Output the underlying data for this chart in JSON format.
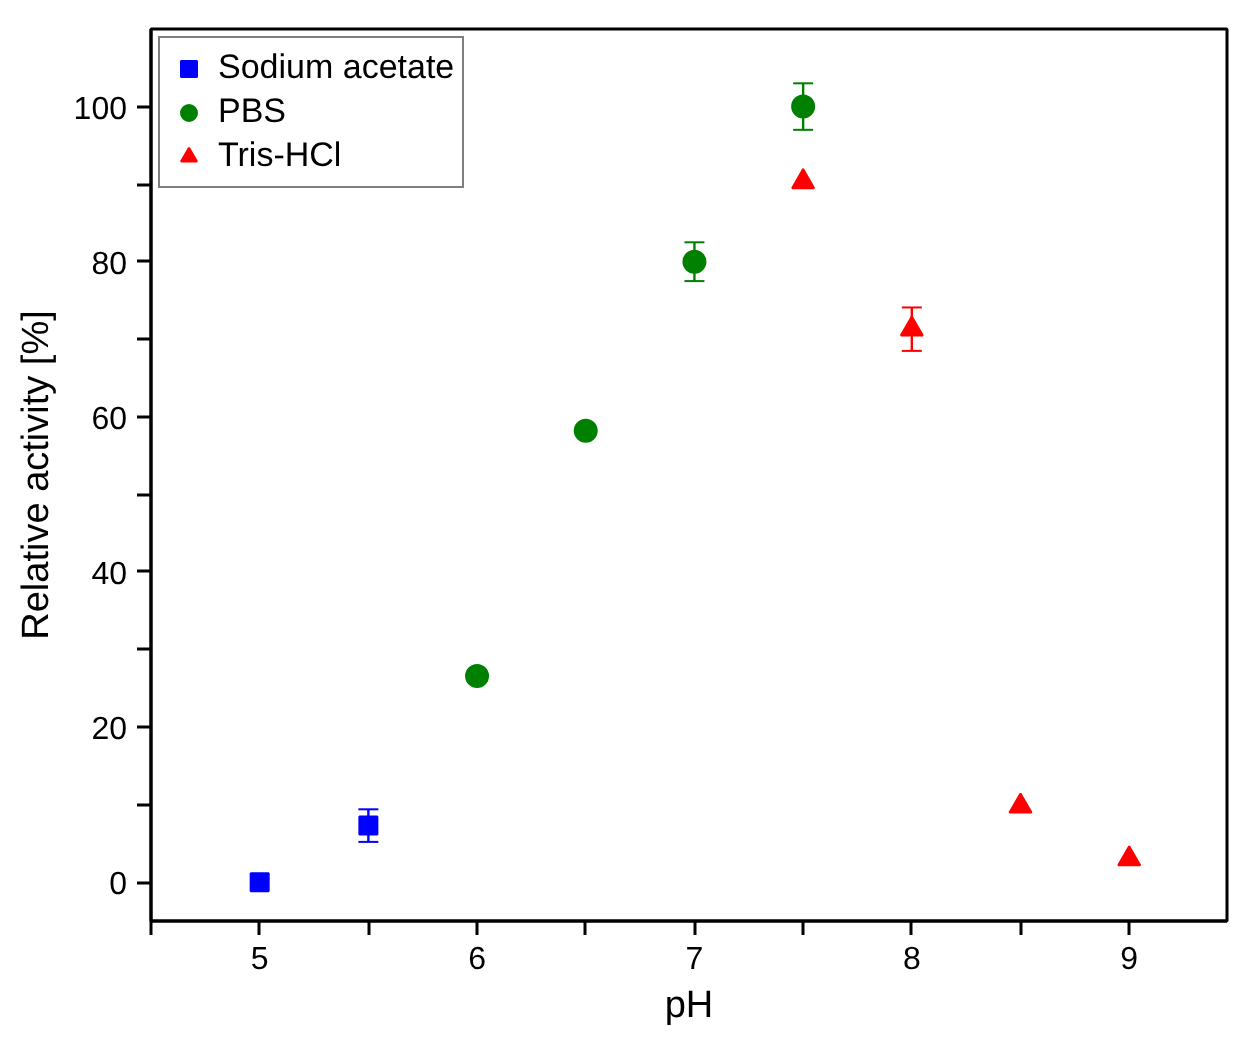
{
  "chart_data": {
    "type": "scatter",
    "xlabel": "pH",
    "ylabel": "Relative activity [%]",
    "xlim": [
      4.5,
      9.45
    ],
    "ylim": [
      -5,
      110
    ],
    "xticks": [
      {
        "value": 4.5,
        "label": null
      },
      5,
      {
        "value": 5.5,
        "label": null
      },
      6,
      {
        "value": 6.5,
        "label": null
      },
      7,
      {
        "value": 7.5,
        "label": null
      },
      8,
      {
        "value": 8.5,
        "label": null
      },
      9
    ],
    "yticks": [
      0,
      {
        "value": 10,
        "label": null
      },
      20,
      {
        "value": 30,
        "label": null
      },
      40,
      {
        "value": 50,
        "label": null
      },
      60,
      {
        "value": 70,
        "label": null
      },
      80,
      {
        "value": 90,
        "label": null
      },
      100
    ],
    "grid": false,
    "legend": "top left",
    "series": [
      {
        "name": "Sodium acetate",
        "color": "#0000ff",
        "marker": "square",
        "x": [
          5,
          5.5
        ],
        "values": [
          0,
          7.3
        ],
        "errors": [
          null,
          2.1
        ]
      },
      {
        "name": "PBS",
        "color": "#008000",
        "marker": "circle",
        "x": [
          6,
          6.5,
          7,
          7.5
        ],
        "values": [
          26.6,
          58.2,
          80,
          100
        ],
        "errors": [
          null,
          null,
          2.5,
          3
        ]
      },
      {
        "name": "Tris-HCl",
        "color": "#ff0000",
        "marker": "triangle",
        "x": [
          7.5,
          8,
          8.5,
          9
        ],
        "values": [
          90.3,
          71.3,
          9.8,
          3
        ],
        "errors": [
          null,
          2.8,
          null,
          null
        ]
      }
    ]
  }
}
